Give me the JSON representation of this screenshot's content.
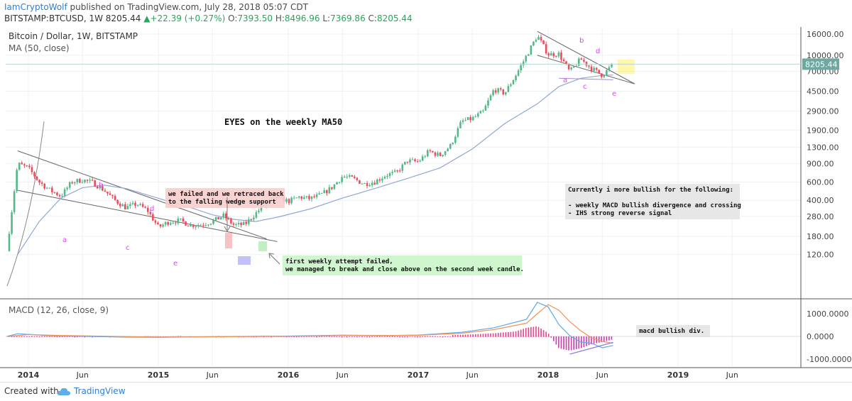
{
  "header": {
    "author": "IamCryptoWolf",
    "published_text": " published on TradingView.com, July 28, 2018 05:07 CDT",
    "symbol_line": "BITSTAMP:BTCUSD, 1W",
    "last_price": "8205.44",
    "change_arrow": "▲",
    "change": "+22.39 (+0.27%)",
    "o_label": "O:",
    "o": "7393.50",
    "h_label": "H:",
    "h": "8496.96",
    "l_label": "L:",
    "l": "7369.86",
    "c_label": "C:",
    "c": "8205.44"
  },
  "legend": {
    "title": "Bitcoin / Dollar, 1W, BITSTAMP",
    "ma": "MA (50, close)",
    "macd": "MACD (12, 26, close, 9)"
  },
  "footer": {
    "created_with": "Created with",
    "brand": "TradingView"
  },
  "colors": {
    "up": "#53b987",
    "down": "#eb4d5c",
    "ma": "#8fa8d6",
    "macd": "#5ea8e8",
    "signal": "#f0935a",
    "hist_pos": "#e8418e",
    "hist_neg": "#c93da9",
    "wave": "#e040fb",
    "grid": "#eef0f4",
    "price_badge": "#6ea8a0"
  },
  "annotations": {
    "eyes": "EYES on the weekly MA50",
    "failed_retrace": [
      "we failed and we retraced back",
      "to the falling wedge support"
    ],
    "first_attempt": [
      "first weekly attempt failed,",
      "we managed to break and close above on the second week candle."
    ],
    "bullish": [
      "Currently i more bullish for the following:",
      "",
      "- weekly MACD bullish divergence and crossing",
      "- IHS strong reverse signal"
    ],
    "macd_div": "macd bullish div.",
    "wave_left": [
      "a",
      "b",
      "c",
      "d",
      "e"
    ],
    "wave_right": [
      "a",
      "b",
      "c",
      "d",
      "e"
    ]
  },
  "chart_data": {
    "type": "candlestick",
    "title": "Bitcoin / Dollar, 1W, BITSTAMP",
    "scale": "log",
    "price_axis": {
      "ticks": [
        16000,
        10000,
        7000,
        4500,
        2900,
        1900,
        1300,
        900,
        600,
        400,
        280,
        180,
        120
      ],
      "tick_labels": [
        "16000.00",
        "10000.00",
        "7000.00",
        "4500.00",
        "2900.00",
        "1900.00",
        "1300.00",
        "900.00",
        "600.00",
        "400.00",
        "280.00",
        "180.00",
        "120.00"
      ],
      "last_label": "8205.44",
      "last_value": 8205.44
    },
    "time_axis": {
      "labels": [
        "2014",
        "Jun",
        "2015",
        "Jun",
        "2016",
        "Jun",
        "2017",
        "Jun",
        "2018",
        "Jun",
        "2019",
        "Jun"
      ],
      "dates": [
        "2014-01",
        "2014-06",
        "2015-01",
        "2015-06",
        "2016-01",
        "2016-06",
        "2017-01",
        "2017-06",
        "2018-01",
        "2018-06",
        "2019-01",
        "2019-06"
      ]
    },
    "price_path": [
      [
        "2013-11",
        130
      ],
      [
        "2013-12",
        900
      ],
      [
        "2014-01",
        820
      ],
      [
        "2014-02",
        600
      ],
      [
        "2014-03",
        500
      ],
      [
        "2014-04",
        440
      ],
      [
        "2014-05",
        600
      ],
      [
        "2014-06",
        630
      ],
      [
        "2014-07",
        590
      ],
      [
        "2014-08",
        500
      ],
      [
        "2014-09",
        400
      ],
      [
        "2014-10",
        340
      ],
      [
        "2014-11",
        370
      ],
      [
        "2014-12",
        320
      ],
      [
        "2015-01",
        220
      ],
      [
        "2015-02",
        250
      ],
      [
        "2015-03",
        255
      ],
      [
        "2015-04",
        230
      ],
      [
        "2015-05",
        235
      ],
      [
        "2015-06",
        250
      ],
      [
        "2015-07",
        285
      ],
      [
        "2015-08",
        230
      ],
      [
        "2015-09",
        235
      ],
      [
        "2015-10",
        300
      ],
      [
        "2015-11",
        380
      ],
      [
        "2015-12",
        430
      ],
      [
        "2016-01",
        390
      ],
      [
        "2016-02",
        430
      ],
      [
        "2016-03",
        415
      ],
      [
        "2016-04",
        450
      ],
      [
        "2016-05",
        530
      ],
      [
        "2016-06",
        680
      ],
      [
        "2016-07",
        650
      ],
      [
        "2016-08",
        575
      ],
      [
        "2016-09",
        605
      ],
      [
        "2016-10",
        700
      ],
      [
        "2016-11",
        740
      ],
      [
        "2016-12",
        960
      ],
      [
        "2017-01",
        940
      ],
      [
        "2017-02",
        1190
      ],
      [
        "2017-03",
        1080
      ],
      [
        "2017-04",
        1350
      ],
      [
        "2017-05",
        2300
      ],
      [
        "2017-06",
        2450
      ],
      [
        "2017-07",
        2850
      ],
      [
        "2017-08",
        4700
      ],
      [
        "2017-09",
        4300
      ],
      [
        "2017-10",
        6400
      ],
      [
        "2017-11",
        9900
      ],
      [
        "2017-12",
        15500
      ],
      [
        "2018-01",
        10200
      ],
      [
        "2018-02",
        10300
      ],
      [
        "2018-03",
        6900
      ],
      [
        "2018-04",
        9200
      ],
      [
        "2018-05",
        7500
      ],
      [
        "2018-06",
        6400
      ],
      [
        "2018-07",
        8205.44
      ]
    ],
    "ma50_path": [
      [
        "2013-12",
        120
      ],
      [
        "2014-02",
        250
      ],
      [
        "2014-04",
        420
      ],
      [
        "2014-06",
        530
      ],
      [
        "2014-08",
        560
      ],
      [
        "2014-10",
        520
      ],
      [
        "2014-12",
        450
      ],
      [
        "2015-02",
        390
      ],
      [
        "2015-04",
        340
      ],
      [
        "2015-06",
        290
      ],
      [
        "2015-08",
        262
      ],
      [
        "2015-10",
        250
      ],
      [
        "2015-12",
        275
      ],
      [
        "2016-03",
        330
      ],
      [
        "2016-06",
        420
      ],
      [
        "2016-09",
        520
      ],
      [
        "2016-12",
        650
      ],
      [
        "2017-03",
        820
      ],
      [
        "2017-06",
        1250
      ],
      [
        "2017-09",
        2200
      ],
      [
        "2017-12",
        3400
      ],
      [
        "2018-02",
        5000
      ],
      [
        "2018-04",
        6000
      ],
      [
        "2018-06",
        6400
      ],
      [
        "2018-07",
        6450
      ]
    ],
    "macd": {
      "name": "MACD (12, 26, close, 9)",
      "axis_ticks": [
        1000,
        0,
        -1000
      ],
      "axis_labels": [
        "1000.0000",
        "0.0000",
        "-1000.0000"
      ],
      "macd_path": [
        [
          "2013-11",
          0
        ],
        [
          "2013-12",
          120
        ],
        [
          "2014-03",
          30
        ],
        [
          "2014-06",
          5
        ],
        [
          "2014-10",
          -30
        ],
        [
          "2015-01",
          -40
        ],
        [
          "2015-06",
          -10
        ],
        [
          "2015-10",
          5
        ],
        [
          "2016-01",
          15
        ],
        [
          "2016-06",
          55
        ],
        [
          "2016-10",
          35
        ],
        [
          "2017-01",
          60
        ],
        [
          "2017-05",
          180
        ],
        [
          "2017-08",
          380
        ],
        [
          "2017-11",
          750
        ],
        [
          "2017-12",
          1500
        ],
        [
          "2018-01",
          1300
        ],
        [
          "2018-02",
          520
        ],
        [
          "2018-03",
          30
        ],
        [
          "2018-04",
          -250
        ],
        [
          "2018-05",
          -300
        ],
        [
          "2018-06",
          -500
        ],
        [
          "2018-07",
          -400
        ]
      ],
      "signal_path": [
        [
          "2013-11",
          0
        ],
        [
          "2014-01",
          80
        ],
        [
          "2014-04",
          40
        ],
        [
          "2014-08",
          10
        ],
        [
          "2015-01",
          -30
        ],
        [
          "2015-06",
          -20
        ],
        [
          "2015-10",
          0
        ],
        [
          "2016-01",
          10
        ],
        [
          "2016-06",
          40
        ],
        [
          "2016-10",
          40
        ],
        [
          "2017-01",
          50
        ],
        [
          "2017-05",
          140
        ],
        [
          "2017-08",
          300
        ],
        [
          "2017-11",
          580
        ],
        [
          "2017-12",
          1000
        ],
        [
          "2018-01",
          1400
        ],
        [
          "2018-02",
          1150
        ],
        [
          "2018-03",
          650
        ],
        [
          "2018-04",
          250
        ],
        [
          "2018-05",
          -60
        ],
        [
          "2018-06",
          -220
        ],
        [
          "2018-07",
          -300
        ]
      ],
      "histogram": [
        [
          "2017-04",
          60
        ],
        [
          "2017-06",
          90
        ],
        [
          "2017-08",
          140
        ],
        [
          "2017-10",
          220
        ],
        [
          "2017-11",
          380
        ],
        [
          "2017-12",
          450
        ],
        [
          "2018-01",
          150
        ],
        [
          "2018-02",
          -500
        ],
        [
          "2018-03",
          -600
        ],
        [
          "2018-04",
          -500
        ],
        [
          "2018-05",
          -320
        ],
        [
          "2018-06",
          -220
        ],
        [
          "2018-07",
          -110
        ]
      ]
    },
    "grid": true
  }
}
